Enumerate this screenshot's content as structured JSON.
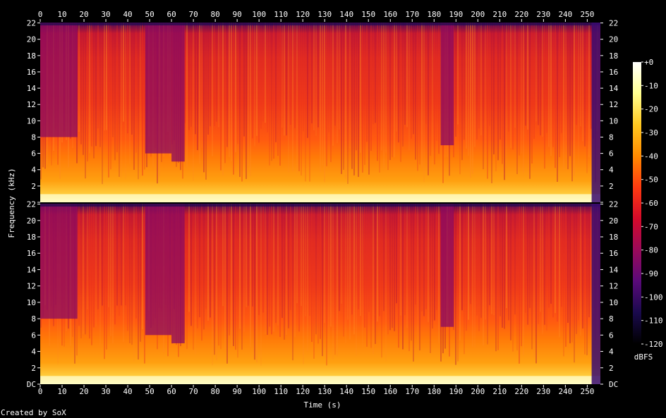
{
  "chart_data": {
    "type": "heatmap",
    "title": "",
    "xlabel": "Time (s)",
    "ylabel": "Frequency (kHz)",
    "xlim": [
      0,
      256
    ],
    "ylim": [
      0,
      22.05
    ],
    "x_ticks": [
      0,
      10,
      20,
      30,
      40,
      50,
      60,
      70,
      80,
      90,
      100,
      110,
      120,
      130,
      140,
      150,
      160,
      170,
      180,
      190,
      200,
      210,
      220,
      230,
      240,
      250
    ],
    "y_ticks": [
      {
        "value": 0,
        "label": "DC"
      },
      {
        "value": 2,
        "label": "2"
      },
      {
        "value": 4,
        "label": "4"
      },
      {
        "value": 6,
        "label": "6"
      },
      {
        "value": 8,
        "label": "8"
      },
      {
        "value": 10,
        "label": "10"
      },
      {
        "value": 12,
        "label": "12"
      },
      {
        "value": 14,
        "label": "14"
      },
      {
        "value": 16,
        "label": "16"
      },
      {
        "value": 18,
        "label": "18"
      },
      {
        "value": 20,
        "label": "20"
      },
      {
        "value": 22,
        "label": "22"
      }
    ],
    "channels": 2,
    "colorbar": {
      "label": "dBFS",
      "range": [
        -120,
        0
      ],
      "ticks": [
        {
          "value": 0,
          "label": "+0"
        },
        {
          "value": -10,
          "label": "-10"
        },
        {
          "value": -20,
          "label": "-20"
        },
        {
          "value": -30,
          "label": "-30"
        },
        {
          "value": -40,
          "label": "-40"
        },
        {
          "value": -50,
          "label": "-50"
        },
        {
          "value": -60,
          "label": "-60"
        },
        {
          "value": -70,
          "label": "-70"
        },
        {
          "value": -80,
          "label": "-80"
        },
        {
          "value": -90,
          "label": "-90"
        },
        {
          "value": -100,
          "label": "-100"
        },
        {
          "value": -110,
          "label": "-110"
        },
        {
          "value": -120,
          "label": "-120"
        }
      ]
    },
    "colors": {
      "background": "#000000",
      "scale": [
        "#000000",
        "#1a0a4d",
        "#5a0a7a",
        "#9a0a5a",
        "#d40a2a",
        "#ff3a10",
        "#ff8a00",
        "#ffc820",
        "#ffff90",
        "#ffffff"
      ]
    }
  },
  "footer": {
    "credit": "Created by SoX"
  }
}
